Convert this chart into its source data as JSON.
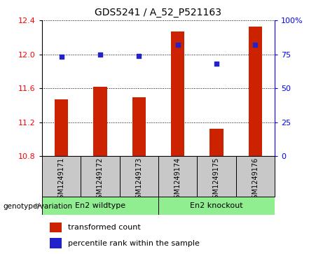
{
  "title": "GDS5241 / A_52_P521163",
  "samples": [
    "GSM1249171",
    "GSM1249172",
    "GSM1249173",
    "GSM1249174",
    "GSM1249175",
    "GSM1249176"
  ],
  "bar_values": [
    11.47,
    11.62,
    11.49,
    12.27,
    11.12,
    12.33
  ],
  "percentile_values": [
    73,
    75,
    74,
    82,
    68,
    82
  ],
  "bar_bottom": 10.8,
  "ylim_left": [
    10.8,
    12.4
  ],
  "ylim_right": [
    0,
    100
  ],
  "yticks_left": [
    10.8,
    11.2,
    11.6,
    12.0,
    12.4
  ],
  "yticks_right": [
    0,
    25,
    50,
    75,
    100
  ],
  "ytick_labels_right": [
    "0",
    "25",
    "50",
    "75",
    "100%"
  ],
  "bar_color": "#CC2200",
  "dot_color": "#2222CC",
  "group1_label": "En2 wildtype",
  "group2_label": "En2 knockout",
  "group1_indices": [
    0,
    1,
    2
  ],
  "group2_indices": [
    3,
    4,
    5
  ],
  "group1_color": "#90EE90",
  "group2_color": "#90EE90",
  "genotype_label": "genotype/variation",
  "legend_bar_label": "transformed count",
  "legend_dot_label": "percentile rank within the sample",
  "bar_width": 0.35,
  "background_color": "#ffffff",
  "sample_box_color": "#C8C8C8"
}
